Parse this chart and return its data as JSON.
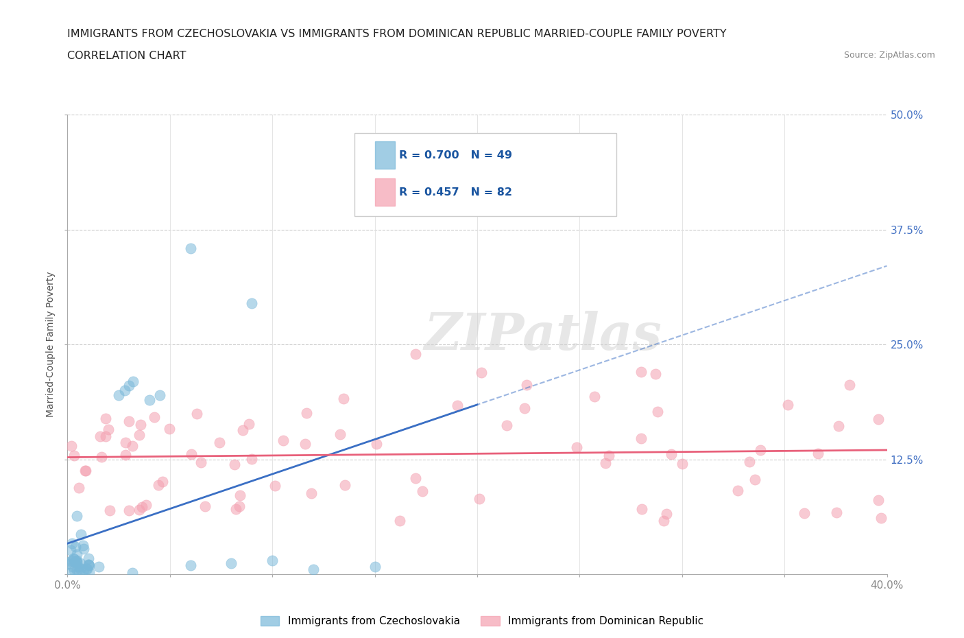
{
  "title_line1": "IMMIGRANTS FROM CZECHOSLOVAKIA VS IMMIGRANTS FROM DOMINICAN REPUBLIC MARRIED-COUPLE FAMILY POVERTY",
  "title_line2": "CORRELATION CHART",
  "source": "Source: ZipAtlas.com",
  "ylabel": "Married-Couple Family Poverty",
  "xlim": [
    0.0,
    0.4
  ],
  "ylim": [
    0.0,
    0.5
  ],
  "xticks": [
    0.0,
    0.05,
    0.1,
    0.15,
    0.2,
    0.25,
    0.3,
    0.35,
    0.4
  ],
  "yticks": [
    0.0,
    0.125,
    0.25,
    0.375,
    0.5
  ],
  "color_czech": "#7ab8d9",
  "color_dominican": "#f4a0b0",
  "color_czech_line": "#3a6fc4",
  "color_dominican_line": "#e8607a",
  "R_czech": 0.7,
  "N_czech": 49,
  "R_dominican": 0.457,
  "N_dominican": 82,
  "watermark": "ZIPatlas",
  "background_color": "#ffffff",
  "grid_color": "#cccccc",
  "title_color": "#222222",
  "source_color": "#888888",
  "ylabel_color": "#555555",
  "ytick_color": "#4472c4",
  "xtick_color": "#888888"
}
